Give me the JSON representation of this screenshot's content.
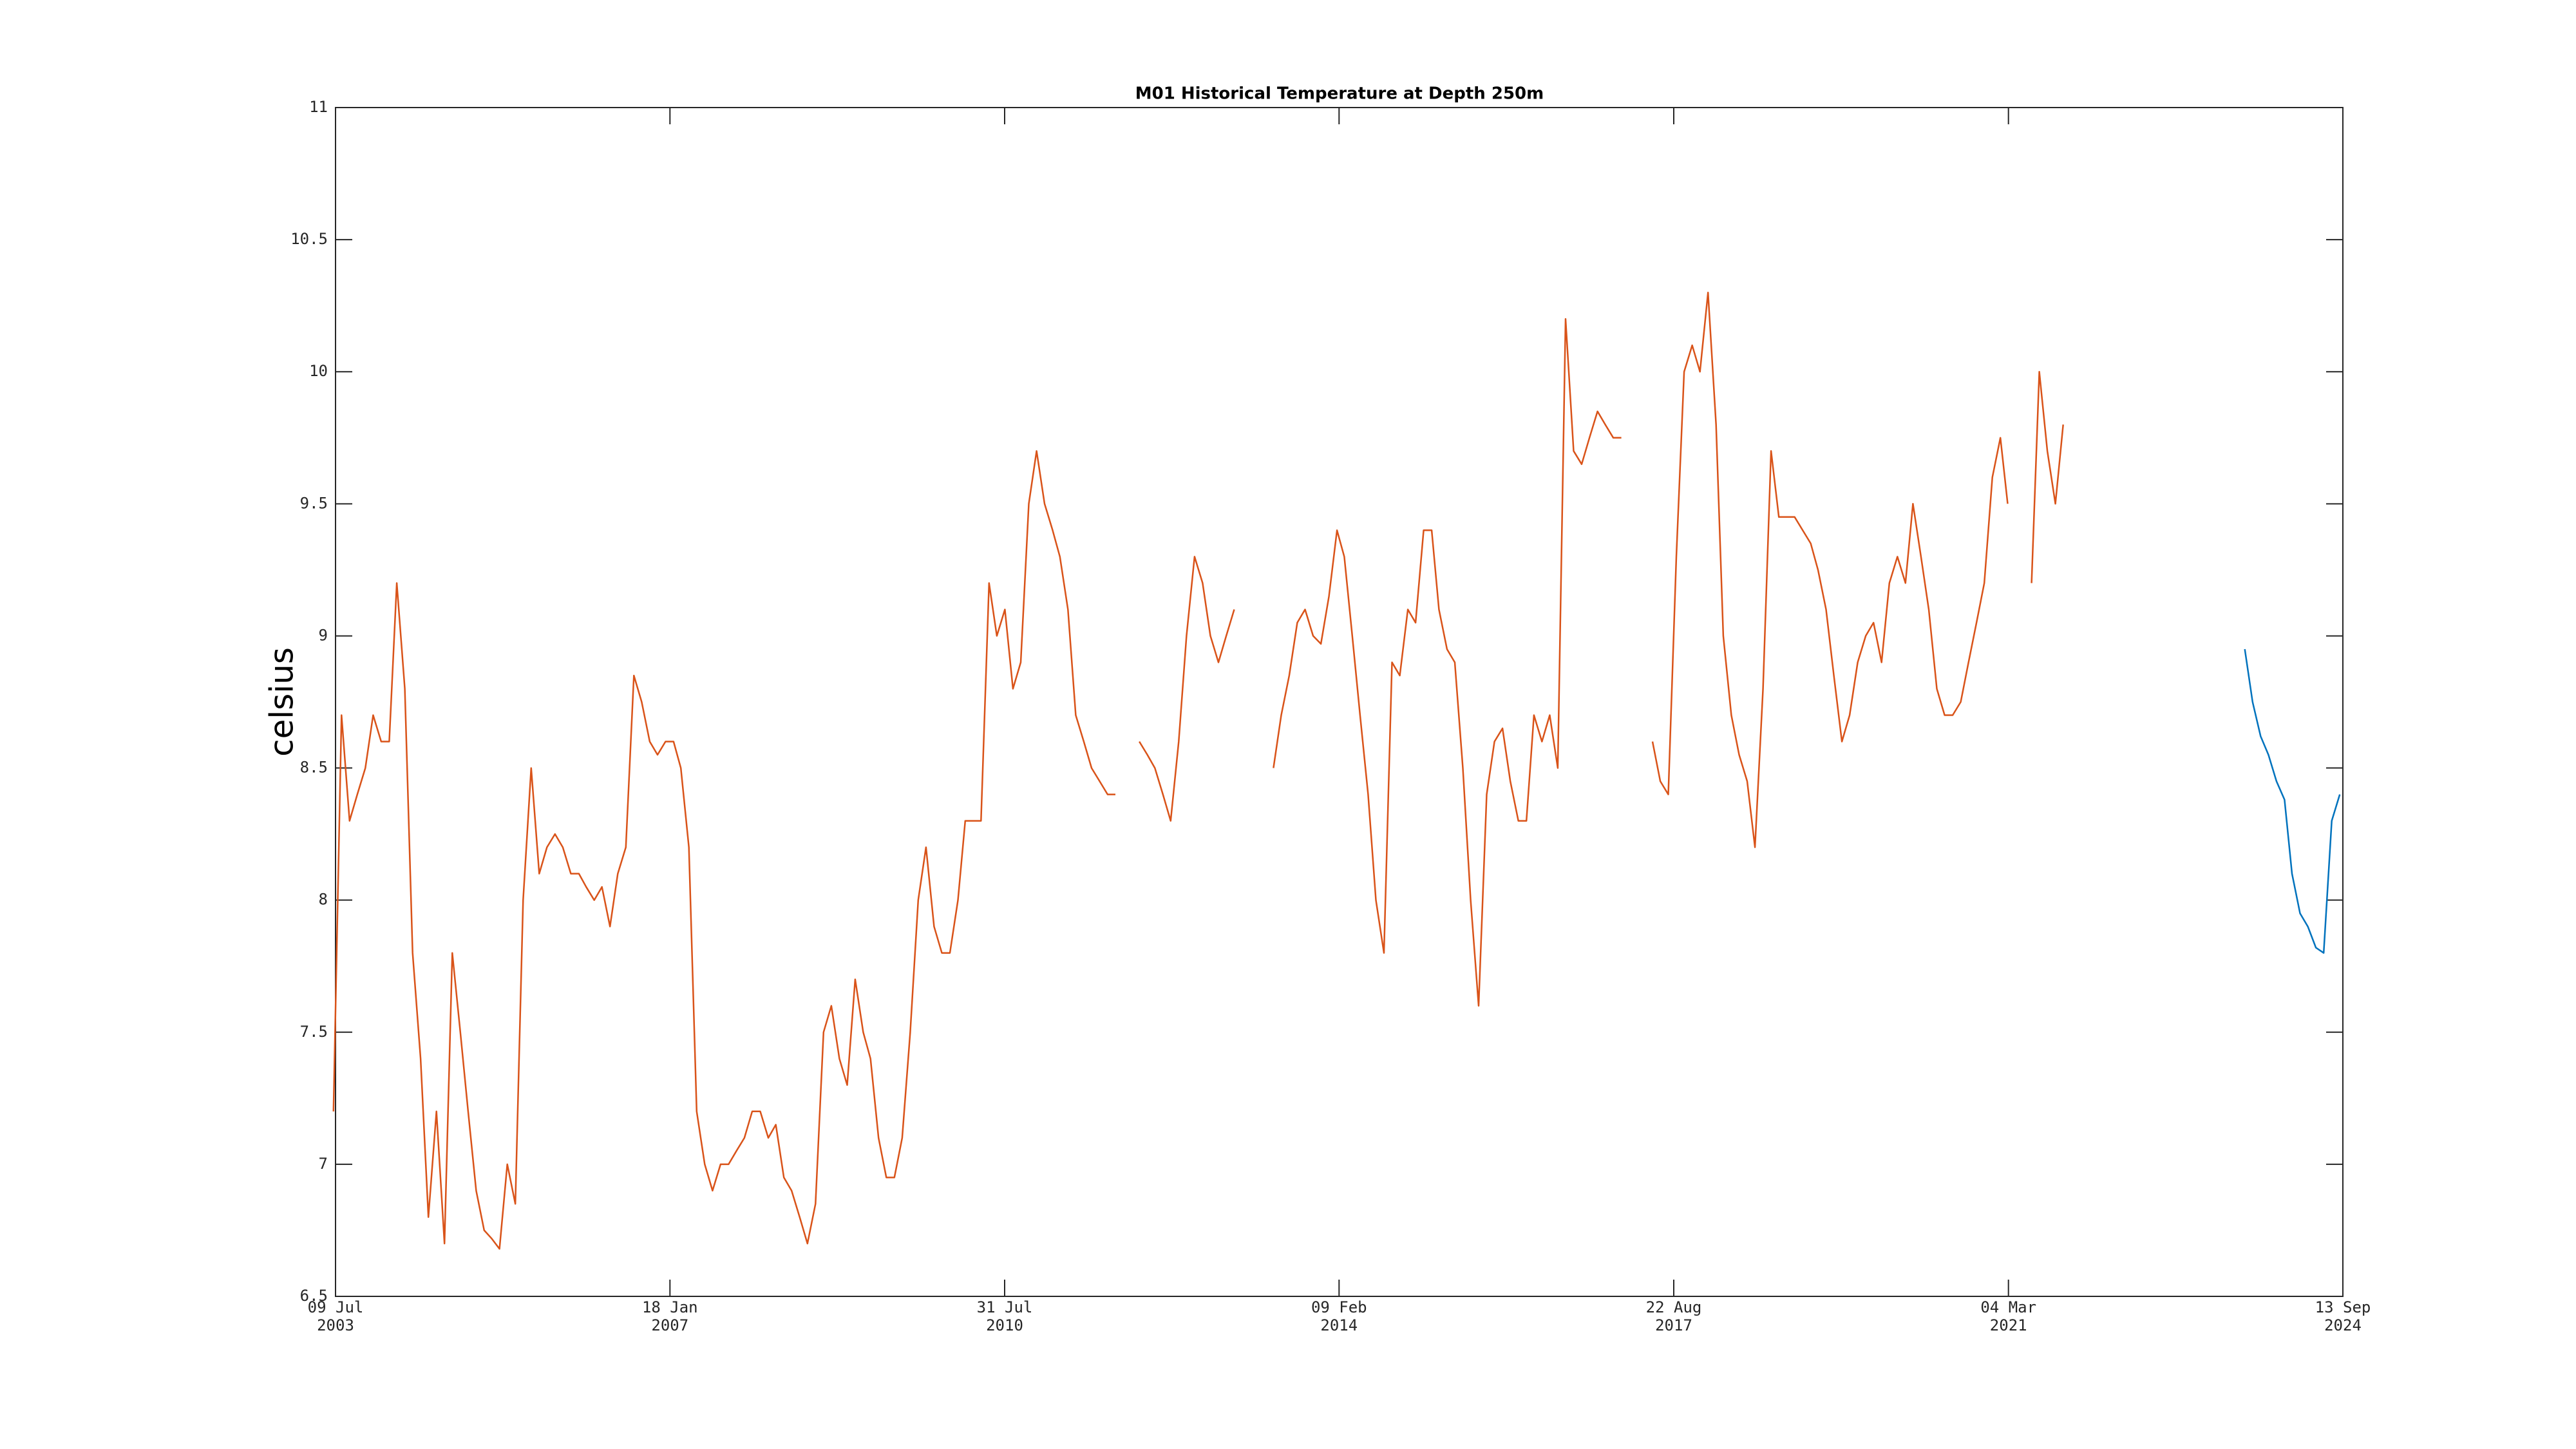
{
  "chart_data": {
    "type": "line",
    "title": "M01 Historical Temperature at Depth 250m",
    "y_label": "celsius",
    "xlim": [
      "2003-07-09",
      "2024-09-13"
    ],
    "xticks": [
      {
        "value": "2003-07-09",
        "label": [
          "09 Jul",
          "2003"
        ]
      },
      {
        "value": "2007-01-18",
        "label": [
          "18 Jan",
          "2007"
        ]
      },
      {
        "value": "2010-07-31",
        "label": [
          "31 Jul",
          "2010"
        ]
      },
      {
        "value": "2014-02-09",
        "label": [
          "09 Feb",
          "2014"
        ]
      },
      {
        "value": "2017-08-22",
        "label": [
          "22 Aug",
          "2017"
        ]
      },
      {
        "value": "2021-03-04",
        "label": [
          "04 Mar",
          "2021"
        ]
      },
      {
        "value": "2024-09-13",
        "label": [
          "13 Sep",
          "2024"
        ]
      }
    ],
    "ylim": [
      6.5,
      11
    ],
    "yticks": [
      6.5,
      7,
      7.5,
      8,
      8.5,
      9,
      9.5,
      10,
      10.5,
      11
    ],
    "grid": false,
    "series": [
      {
        "color": "#d95319",
        "x": [
          "2003-07",
          "2003-08",
          "2003-09",
          "2003-10",
          "2003-11",
          "2003-12",
          "2004-01",
          "2004-02",
          "2004-03",
          "2004-04",
          "2004-05",
          "2004-06",
          "2004-07",
          "2004-08",
          "2004-09",
          "2004-10",
          "2004-11",
          "2004-12",
          "2005-01",
          "2005-02",
          "2005-03",
          "2005-04",
          "2005-05",
          "2005-06",
          "2005-07",
          "2005-08",
          "2005-09",
          "2005-10",
          "2005-11",
          "2005-12",
          "2006-01",
          "2006-02",
          "2006-03",
          "2006-04",
          "2006-05",
          "2006-06",
          "2006-07",
          "2006-08",
          "2006-09",
          "2006-10",
          "2006-11",
          "2006-12",
          "2007-01",
          "2007-02",
          "2007-03",
          "2007-04",
          "2007-05",
          "2007-06",
          "2007-07",
          "2007-08",
          "2007-09",
          "2007-10",
          "2007-11",
          "2007-12",
          "2008-01",
          "2008-02",
          "2008-03",
          "2008-04",
          "2008-05",
          "2008-06",
          "2008-07",
          "2008-08",
          "2008-09",
          "2008-10",
          "2008-11",
          "2008-12",
          "2009-01",
          "2009-02",
          "2009-03",
          "2009-04",
          "2009-05",
          "2009-06",
          "2009-07",
          "2009-08",
          "2009-09",
          "2009-10",
          "2009-11",
          "2009-12",
          "2010-01",
          "2010-02",
          "2010-03",
          "2010-04",
          "2010-05",
          "2010-06",
          "2010-07",
          "2010-08",
          "2010-09",
          "2010-10",
          "2010-11",
          "2010-12",
          "2011-01",
          "2011-02",
          "2011-03",
          "2011-04",
          "2011-05",
          "2011-06",
          "2011-07",
          "2011-08",
          "2011-09",
          "2011-10",
          "2011-11",
          "2012-01",
          "2012-02",
          "2012-03",
          "2012-04",
          "2012-05",
          "2012-06",
          "2012-07",
          "2012-08",
          "2012-09",
          "2012-10",
          "2012-11",
          "2012-12",
          "2013-01",
          "2013-02",
          "2013-06",
          "2013-07",
          "2013-08",
          "2013-09",
          "2013-10",
          "2013-11",
          "2013-12",
          "2014-01",
          "2014-02",
          "2014-03",
          "2014-04",
          "2014-05",
          "2014-06",
          "2014-07",
          "2014-08",
          "2014-09",
          "2014-10",
          "2014-11",
          "2014-12",
          "2015-01",
          "2015-02",
          "2015-03",
          "2015-04",
          "2015-05",
          "2015-06",
          "2015-07",
          "2015-08",
          "2015-09",
          "2015-10",
          "2015-11",
          "2015-12",
          "2016-01",
          "2016-02",
          "2016-03",
          "2016-04",
          "2016-05",
          "2016-06",
          "2016-07",
          "2016-08",
          "2016-09",
          "2016-10",
          "2016-11",
          "2016-12",
          "2017-01",
          "2017-02",
          "2017-03",
          "2017-06",
          "2017-07",
          "2017-08",
          "2017-09",
          "2017-10",
          "2017-11",
          "2017-12",
          "2018-01",
          "2018-02",
          "2018-03",
          "2018-04",
          "2018-05",
          "2018-06",
          "2018-07",
          "2018-08",
          "2018-09",
          "2018-10",
          "2018-11",
          "2018-12",
          "2019-01",
          "2019-02",
          "2019-03",
          "2019-04",
          "2019-05",
          "2019-06",
          "2019-07",
          "2019-08",
          "2019-09",
          "2019-10",
          "2019-11",
          "2019-12",
          "2020-01",
          "2020-02",
          "2020-03",
          "2020-04",
          "2020-05",
          "2020-06",
          "2020-07",
          "2020-08",
          "2020-09",
          "2020-10",
          "2020-11",
          "2020-12",
          "2021-01",
          "2021-02",
          "2021-03",
          "2021-04",
          "2021-06",
          "2021-07",
          "2021-08",
          "2021-09",
          "2021-10"
        ],
        "values": [
          7.2,
          8.7,
          8.3,
          8.4,
          8.5,
          8.7,
          8.6,
          8.6,
          9.2,
          8.8,
          7.8,
          7.4,
          6.8,
          7.2,
          6.7,
          7.8,
          7.5,
          7.2,
          6.9,
          6.75,
          6.72,
          6.68,
          7.0,
          6.85,
          8.0,
          8.5,
          8.1,
          8.2,
          8.25,
          8.2,
          8.1,
          8.1,
          8.05,
          8.0,
          8.05,
          7.9,
          8.1,
          8.2,
          8.85,
          8.75,
          8.6,
          8.55,
          8.6,
          8.6,
          8.5,
          8.2,
          7.2,
          7.0,
          6.9,
          7.0,
          7.0,
          7.05,
          7.1,
          7.2,
          7.2,
          7.1,
          7.15,
          6.95,
          6.9,
          6.8,
          6.7,
          6.85,
          7.5,
          7.6,
          7.4,
          7.3,
          7.7,
          7.5,
          7.4,
          7.1,
          6.95,
          6.95,
          7.1,
          7.5,
          8.0,
          8.2,
          7.9,
          7.8,
          7.8,
          8.0,
          8.3,
          8.3,
          8.3,
          9.2,
          9.0,
          9.1,
          8.8,
          8.9,
          9.5,
          9.7,
          9.5,
          9.4,
          9.3,
          9.1,
          8.7,
          8.6,
          8.5,
          8.45,
          8.4,
          8.4,
          null,
          8.6,
          8.55,
          8.5,
          8.4,
          8.3,
          8.6,
          9.0,
          9.3,
          9.2,
          9.0,
          8.9,
          9.0,
          9.1,
          null,
          8.5,
          8.7,
          8.85,
          9.05,
          9.1,
          9.0,
          8.97,
          9.15,
          9.4,
          9.3,
          9.0,
          8.7,
          8.4,
          8.0,
          7.8,
          8.9,
          8.85,
          9.1,
          9.05,
          9.4,
          9.4,
          9.1,
          8.95,
          8.9,
          8.5,
          8.0,
          7.6,
          8.4,
          8.6,
          8.65,
          8.45,
          8.3,
          8.3,
          8.7,
          8.6,
          8.7,
          8.5,
          10.2,
          9.7,
          9.65,
          9.75,
          9.85,
          9.8,
          9.75,
          9.75,
          null,
          8.6,
          8.45,
          8.4,
          9.3,
          10.0,
          10.1,
          10.0,
          10.3,
          9.8,
          9.0,
          8.7,
          8.55,
          8.45,
          8.2,
          8.8,
          9.7,
          9.45,
          9.45,
          9.45,
          9.4,
          9.35,
          9.25,
          9.1,
          8.85,
          8.6,
          8.7,
          8.9,
          9.0,
          9.05,
          8.9,
          9.2,
          9.3,
          9.2,
          9.5,
          9.3,
          9.1,
          8.8,
          8.7,
          8.7,
          8.75,
          8.9,
          9.05,
          9.2,
          9.6,
          9.75,
          9.5,
          null,
          9.2,
          10.0,
          9.7,
          9.5,
          9.8
        ]
      },
      {
        "color": "#0072bd",
        "x": [
          "2023-09",
          "2023-10",
          "2023-11",
          "2023-12",
          "2024-01",
          "2024-02",
          "2024-03",
          "2024-04",
          "2024-05",
          "2024-06",
          "2024-07",
          "2024-08",
          "2024-09"
        ],
        "values": [
          8.95,
          8.75,
          8.62,
          8.55,
          8.45,
          8.38,
          8.1,
          7.95,
          7.9,
          7.82,
          7.8,
          8.3,
          8.4
        ]
      }
    ]
  }
}
